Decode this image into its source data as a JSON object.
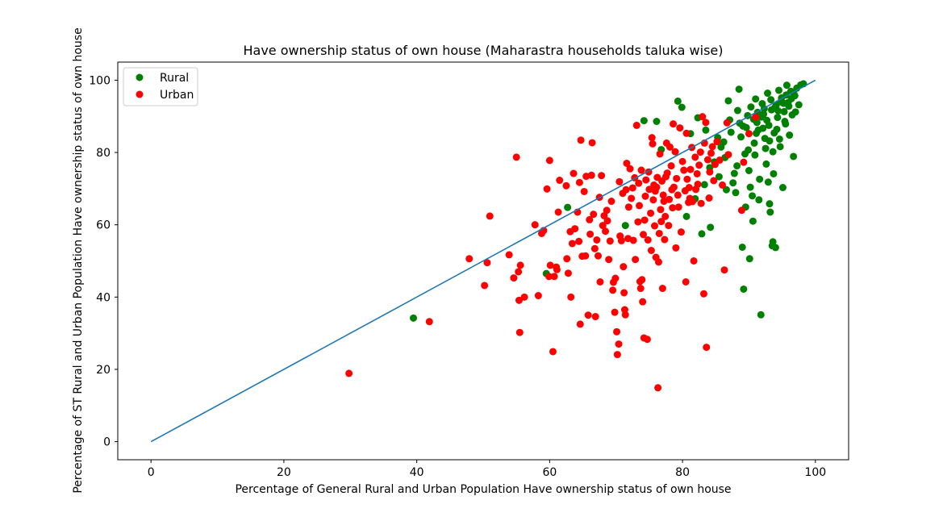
{
  "chart_data": {
    "type": "scatter",
    "title": "Have ownership status of own house (Maharastra households taluka wise)",
    "xlabel": "Percentage of General Rural and Urban Population Have ownership status of own house",
    "ylabel": "Percentage of ST Rural and Urban Population Have ownership status of own house",
    "xlim": [
      -5,
      105
    ],
    "ylim": [
      -5,
      105
    ],
    "xticks": [
      0,
      20,
      40,
      60,
      80,
      100
    ],
    "yticks": [
      0,
      20,
      40,
      60,
      80,
      100
    ],
    "grid": false,
    "legend_position": "upper-left",
    "series": [
      {
        "name": "Rural",
        "color": "#008000",
        "points": [
          [
            39.5,
            34.2
          ],
          [
            59.5,
            46.5
          ],
          [
            62.7,
            64.8
          ],
          [
            71.4,
            59.8
          ],
          [
            74.2,
            88.8
          ],
          [
            76.1,
            88.6
          ],
          [
            76.8,
            80.8
          ],
          [
            79.3,
            94.2
          ],
          [
            79.9,
            92.5
          ],
          [
            80.6,
            62.3
          ],
          [
            81.2,
            85.2
          ],
          [
            81.9,
            67.2
          ],
          [
            82.3,
            89.6
          ],
          [
            82.9,
            57.5
          ],
          [
            83.5,
            86.2
          ],
          [
            84.2,
            59.3
          ],
          [
            84.8,
            77.4
          ],
          [
            85.3,
            84.1
          ],
          [
            85.8,
            81.5
          ],
          [
            86.4,
            78.6
          ],
          [
            86.9,
            94.3
          ],
          [
            87.1,
            89.0
          ],
          [
            87.6,
            71.6
          ],
          [
            88.0,
            68.9
          ],
          [
            88.3,
            91.6
          ],
          [
            88.5,
            97.5
          ],
          [
            88.8,
            84.3
          ],
          [
            89.0,
            53.8
          ],
          [
            89.2,
            42.2
          ],
          [
            89.4,
            79.6
          ],
          [
            89.6,
            86.9
          ],
          [
            89.8,
            90.2
          ],
          [
            90.0,
            75.0
          ],
          [
            90.1,
            50.6
          ],
          [
            90.3,
            92.6
          ],
          [
            90.5,
            68.0
          ],
          [
            90.6,
            61.0
          ],
          [
            90.8,
            82.6
          ],
          [
            91.0,
            94.8
          ],
          [
            91.2,
            88.3
          ],
          [
            91.4,
            86.2
          ],
          [
            91.6,
            72.6
          ],
          [
            91.8,
            35.1
          ],
          [
            92.0,
            93.5
          ],
          [
            92.2,
            90.6
          ],
          [
            92.4,
            83.9
          ],
          [
            92.6,
            76.8
          ],
          [
            92.8,
            96.4
          ],
          [
            93.0,
            87.5
          ],
          [
            93.1,
            65.8
          ],
          [
            93.2,
            63.5
          ],
          [
            93.4,
            91.8
          ],
          [
            93.5,
            54.2
          ],
          [
            93.6,
            55.3
          ],
          [
            93.7,
            74.1
          ],
          [
            93.8,
            85.4
          ],
          [
            94.0,
            53.7
          ],
          [
            94.1,
            93.1
          ],
          [
            94.3,
            89.7
          ],
          [
            94.5,
            97.2
          ],
          [
            94.7,
            81.6
          ],
          [
            94.9,
            95.1
          ],
          [
            95.1,
            70.3
          ],
          [
            95.3,
            91.3
          ],
          [
            95.5,
            87.9
          ],
          [
            95.7,
            98.6
          ],
          [
            95.9,
            93.8
          ],
          [
            96.1,
            84.8
          ],
          [
            96.3,
            96.9
          ],
          [
            96.5,
            90.4
          ],
          [
            96.7,
            78.9
          ],
          [
            96.9,
            95.7
          ],
          [
            97.2,
            97.8
          ],
          [
            97.5,
            93.2
          ],
          [
            97.8,
            98.7
          ],
          [
            98.2,
            99.0
          ],
          [
            86.2,
            82.9
          ],
          [
            87.3,
            85.6
          ],
          [
            88.6,
            88.1
          ],
          [
            89.1,
            87.3
          ],
          [
            90.7,
            89.2
          ],
          [
            91.3,
            91.1
          ],
          [
            91.9,
            89.8
          ],
          [
            92.3,
            92.1
          ],
          [
            92.7,
            88.9
          ],
          [
            93.3,
            94.6
          ],
          [
            93.9,
            92.4
          ],
          [
            94.4,
            91.5
          ],
          [
            94.8,
            94.0
          ],
          [
            95.2,
            93.6
          ],
          [
            95.6,
            95.9
          ],
          [
            96.0,
            92.8
          ],
          [
            96.4,
            94.9
          ],
          [
            96.8,
            96.1
          ],
          [
            97.0,
            91.2
          ],
          [
            91.1,
            85.3
          ],
          [
            92.1,
            86.7
          ],
          [
            93.1,
            83.2
          ],
          [
            94.2,
            86.4
          ],
          [
            95.4,
            88.6
          ],
          [
            89.9,
            80.7
          ],
          [
            90.9,
            79.3
          ],
          [
            92.5,
            81.1
          ],
          [
            93.6,
            80.2
          ],
          [
            94.6,
            83.7
          ],
          [
            90.2,
            70.4
          ],
          [
            91.5,
            66.9
          ],
          [
            92.9,
            71.8
          ],
          [
            88.2,
            76.3
          ],
          [
            87.8,
            74.2
          ],
          [
            85.5,
            73.3
          ],
          [
            84.1,
            75.8
          ],
          [
            83.3,
            71.1
          ],
          [
            86.6,
            69.7
          ],
          [
            89.5,
            64.9
          ]
        ]
      },
      {
        "name": "Urban",
        "color": "#ff0000",
        "points": [
          [
            29.8,
            18.9
          ],
          [
            41.9,
            33.2
          ],
          [
            47.9,
            50.6
          ],
          [
            50.2,
            43.2
          ],
          [
            50.6,
            49.5
          ],
          [
            51.0,
            62.4
          ],
          [
            53.9,
            51.7
          ],
          [
            54.6,
            45.3
          ],
          [
            55.0,
            78.7
          ],
          [
            55.3,
            47.0
          ],
          [
            55.4,
            39.1
          ],
          [
            55.5,
            30.2
          ],
          [
            55.6,
            48.8
          ],
          [
            56.2,
            40.0
          ],
          [
            57.8,
            60.0
          ],
          [
            58.3,
            40.4
          ],
          [
            58.8,
            57.6
          ],
          [
            59.1,
            58.4
          ],
          [
            59.6,
            69.9
          ],
          [
            59.9,
            45.7
          ],
          [
            60.0,
            77.8
          ],
          [
            60.1,
            48.8
          ],
          [
            60.5,
            24.9
          ],
          [
            60.7,
            45.7
          ],
          [
            61.0,
            48.3
          ],
          [
            61.1,
            47.6
          ],
          [
            61.3,
            63.5
          ],
          [
            61.5,
            72.3
          ],
          [
            62.5,
            70.8
          ],
          [
            62.6,
            50.6
          ],
          [
            62.8,
            46.6
          ],
          [
            63.1,
            58.1
          ],
          [
            63.2,
            40.0
          ],
          [
            63.4,
            54.8
          ],
          [
            63.6,
            74.2
          ],
          [
            63.8,
            58.9
          ],
          [
            64.2,
            63.5
          ],
          [
            64.4,
            55.4
          ],
          [
            64.5,
            71.7
          ],
          [
            64.6,
            32.5
          ],
          [
            64.7,
            83.4
          ],
          [
            64.9,
            51.3
          ],
          [
            65.2,
            69.2
          ],
          [
            65.4,
            51.4
          ],
          [
            65.5,
            73.4
          ],
          [
            65.8,
            35.0
          ],
          [
            66.0,
            61.4
          ],
          [
            66.1,
            57.4
          ],
          [
            66.3,
            73.7
          ],
          [
            66.4,
            82.7
          ],
          [
            66.6,
            62.9
          ],
          [
            66.8,
            53.4
          ],
          [
            66.9,
            34.6
          ],
          [
            67.1,
            55.8
          ],
          [
            67.3,
            51.4
          ],
          [
            67.5,
            67.6
          ],
          [
            67.6,
            44.2
          ],
          [
            67.8,
            73.6
          ],
          [
            68.0,
            59.8
          ],
          [
            68.2,
            62.5
          ],
          [
            68.4,
            58.2
          ],
          [
            68.6,
            64.0
          ],
          [
            68.7,
            61.1
          ],
          [
            68.9,
            50.4
          ],
          [
            69.1,
            55.5
          ],
          [
            69.3,
            66.5
          ],
          [
            69.5,
            41.9
          ],
          [
            69.6,
            44.1
          ],
          [
            69.8,
            35.8
          ],
          [
            69.9,
            45.2
          ],
          [
            70.1,
            30.4
          ],
          [
            70.2,
            24.1
          ],
          [
            70.4,
            27.0
          ],
          [
            70.5,
            71.9
          ],
          [
            70.6,
            56.9
          ],
          [
            70.8,
            55.6
          ],
          [
            71.0,
            68.7
          ],
          [
            71.1,
            48.4
          ],
          [
            71.2,
            41.2
          ],
          [
            71.3,
            36.5
          ],
          [
            71.4,
            35.1
          ],
          [
            71.5,
            69.7
          ],
          [
            71.6,
            77.0
          ],
          [
            71.8,
            56.2
          ],
          [
            71.9,
            64.9
          ],
          [
            72.1,
            75.5
          ],
          [
            72.3,
            67.3
          ],
          [
            72.5,
            70.2
          ],
          [
            72.6,
            55.7
          ],
          [
            72.8,
            73.0
          ],
          [
            72.9,
            50.4
          ],
          [
            73.1,
            87.5
          ],
          [
            73.3,
            60.8
          ],
          [
            73.4,
            71.5
          ],
          [
            73.5,
            65.3
          ],
          [
            73.6,
            44.3
          ],
          [
            73.7,
            42.4
          ],
          [
            73.8,
            75.1
          ],
          [
            73.9,
            44.8
          ],
          [
            74.0,
            38.7
          ],
          [
            74.1,
            57.3
          ],
          [
            74.2,
            28.7
          ],
          [
            74.3,
            61.3
          ],
          [
            74.4,
            67.9
          ],
          [
            74.5,
            72.4
          ],
          [
            74.7,
            28.3
          ],
          [
            74.8,
            55.8
          ],
          [
            74.9,
            74.6
          ],
          [
            75.0,
            69.8
          ],
          [
            75.2,
            63.2
          ],
          [
            75.3,
            52.9
          ],
          [
            75.4,
            84.1
          ],
          [
            75.5,
            82.4
          ],
          [
            75.6,
            66.9
          ],
          [
            75.7,
            71.0
          ],
          [
            75.8,
            59.7
          ],
          [
            75.9,
            69.3
          ],
          [
            76.0,
            51.0
          ],
          [
            76.1,
            70.4
          ],
          [
            76.2,
            73.1
          ],
          [
            76.3,
            14.9
          ],
          [
            76.4,
            49.7
          ],
          [
            76.5,
            57.6
          ],
          [
            76.6,
            79.6
          ],
          [
            76.7,
            64.2
          ],
          [
            76.8,
            60.9
          ],
          [
            76.9,
            72.1
          ],
          [
            77.0,
            42.4
          ],
          [
            77.1,
            68.2
          ],
          [
            77.2,
            66.5
          ],
          [
            77.3,
            55.9
          ],
          [
            77.4,
            62.3
          ],
          [
            77.5,
            73.3
          ],
          [
            77.6,
            82.6
          ],
          [
            77.7,
            74.3
          ],
          [
            77.9,
            59.8
          ],
          [
            78.0,
            67.0
          ],
          [
            78.1,
            81.5
          ],
          [
            78.3,
            76.3
          ],
          [
            78.4,
            69.7
          ],
          [
            78.5,
            64.7
          ],
          [
            78.6,
            87.9
          ],
          [
            78.7,
            70.4
          ],
          [
            78.9,
            80.2
          ],
          [
            79.0,
            53.6
          ],
          [
            79.1,
            72.8
          ],
          [
            79.3,
            68.2
          ],
          [
            79.4,
            64.9
          ],
          [
            79.6,
            86.8
          ],
          [
            79.8,
            58.0
          ],
          [
            80.0,
            77.5
          ],
          [
            80.2,
            75.1
          ],
          [
            80.4,
            69.4
          ],
          [
            80.5,
            44.2
          ],
          [
            80.6,
            85.3
          ],
          [
            80.7,
            72.6
          ],
          [
            80.9,
            66.2
          ],
          [
            81.0,
            70.3
          ],
          [
            81.1,
            67.3
          ],
          [
            81.2,
            75.3
          ],
          [
            81.4,
            81.4
          ],
          [
            81.5,
            66.4
          ],
          [
            81.7,
            50.0
          ],
          [
            81.9,
            78.7
          ],
          [
            82.0,
            69.8
          ],
          [
            82.2,
            74.1
          ],
          [
            82.3,
            71.2
          ],
          [
            82.5,
            76.5
          ],
          [
            82.7,
            80.1
          ],
          [
            82.8,
            65.9
          ],
          [
            83.0,
            89.9
          ],
          [
            83.2,
            40.9
          ],
          [
            83.3,
            82.6
          ],
          [
            83.5,
            88.3
          ],
          [
            83.6,
            26.1
          ],
          [
            83.8,
            78.0
          ],
          [
            84.0,
            67.4
          ],
          [
            84.1,
            74.6
          ],
          [
            84.3,
            79.8
          ],
          [
            84.5,
            81.6
          ],
          [
            84.7,
            72.2
          ],
          [
            84.9,
            76.7
          ],
          [
            85.2,
            83.0
          ],
          [
            85.6,
            77.9
          ],
          [
            86.0,
            71.0
          ],
          [
            86.3,
            47.5
          ],
          [
            86.7,
            88.2
          ],
          [
            86.9,
            79.4
          ],
          [
            88.9,
            64.0
          ],
          [
            89.2,
            77.3
          ],
          [
            90.0,
            85.2
          ],
          [
            91.0,
            89.8
          ]
        ]
      }
    ],
    "reference_line": {
      "from": [
        0,
        0
      ],
      "to": [
        100,
        100
      ],
      "color": "#1f77b4"
    }
  }
}
